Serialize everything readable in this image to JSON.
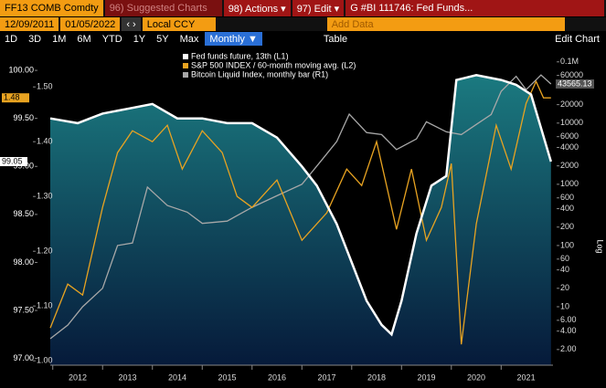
{
  "toolbar": {
    "ticker": "FF13 COMB Comdty",
    "suggested": "96) Suggested Charts",
    "actions": "98) Actions ▾",
    "edit": "97) Edit ▾",
    "chart_name": "G #BI 111746: Fed Funds...",
    "start_date": "12/09/2011",
    "end_date": "01/05/2022",
    "currency": "Local CCY",
    "add_data": "Add Data",
    "periods": [
      "1D",
      "3D",
      "1M",
      "6M",
      "YTD",
      "1Y",
      "5Y",
      "Max"
    ],
    "frequency": "Monthly ▼",
    "table": "Table",
    "edit_chart": "Edit Chart"
  },
  "chart_data": {
    "type": "line",
    "y3label": "Log",
    "y3log": true,
    "xlim": [
      2011.95,
      2022.04
    ],
    "xticks": [
      2012,
      2013,
      2014,
      2015,
      2016,
      2017,
      2018,
      2019,
      2020,
      2021
    ],
    "ylim": [
      96.93,
      100.21
    ],
    "yticks": [
      {
        "value": 97,
        "label": "97.00"
      },
      {
        "value": 97.5,
        "label": "97.50"
      },
      {
        "value": 98,
        "label": "98.00"
      },
      {
        "value": 98.5,
        "label": "98.50"
      },
      {
        "value": 99,
        "label": "99.00"
      },
      {
        "value": 99.5,
        "label": "99.50"
      },
      {
        "value": 100,
        "label": "100.00"
      }
    ],
    "y2lim": [
      0.992,
      1.567
    ],
    "y2ticks": [
      {
        "value": 1.0,
        "label": "1.00"
      },
      {
        "value": 1.1,
        "label": "1.10"
      },
      {
        "value": 1.2,
        "label": "1.20"
      },
      {
        "value": 1.3,
        "label": "1.30"
      },
      {
        "value": 1.4,
        "label": "1.40"
      },
      {
        "value": 1.5,
        "label": "1.50"
      }
    ],
    "y3lim": [
      1.11,
      155000
    ],
    "y3ticks": [
      {
        "value": 100000,
        "label": "0.1M"
      },
      60000,
      40000,
      20000,
      10000,
      6000,
      4000,
      2000,
      1000,
      600,
      400,
      200,
      100,
      60,
      40,
      20,
      10,
      {
        "value": 6,
        "label": "6.00"
      },
      {
        "value": 4,
        "label": "4.00"
      },
      {
        "value": 2,
        "label": "2.00"
      }
    ],
    "series": [
      {
        "name": "Fed funds future, 13th (L1)",
        "color": "#ffffff",
        "axis": "y",
        "last_label": "99.05",
        "x": [
          2011.95,
          2012.5,
          2013.0,
          2013.5,
          2014.0,
          2014.5,
          2015.0,
          2015.5,
          2016.0,
          2016.5,
          2017.0,
          2017.3,
          2017.7,
          2018.0,
          2018.3,
          2018.6,
          2018.8,
          2019.0,
          2019.3,
          2019.6,
          2019.9,
          2020.1,
          2020.5,
          2021.0,
          2021.3,
          2021.6,
          2021.8,
          2022.0
        ],
        "values": [
          99.5,
          99.45,
          99.55,
          99.6,
          99.65,
          99.5,
          99.5,
          99.45,
          99.45,
          99.3,
          99.0,
          98.8,
          98.4,
          98.0,
          97.6,
          97.35,
          97.25,
          97.6,
          98.3,
          98.8,
          98.9,
          99.9,
          99.95,
          99.9,
          99.85,
          99.75,
          99.4,
          99.05
        ]
      },
      {
        "name": "S&P 500 INDEX / 60-month moving avg. (L2)",
        "color": "#e8a321",
        "axis": "y2",
        "last_label": "1.48",
        "x": [
          2011.95,
          2012.3,
          2012.6,
          2013.0,
          2013.3,
          2013.6,
          2014.0,
          2014.3,
          2014.6,
          2015.0,
          2015.4,
          2015.7,
          2016.0,
          2016.5,
          2017.0,
          2017.5,
          2017.9,
          2018.2,
          2018.5,
          2018.9,
          2019.2,
          2019.5,
          2019.8,
          2020.0,
          2020.2,
          2020.5,
          2020.9,
          2021.2,
          2021.5,
          2021.7,
          2021.85,
          2022.0
        ],
        "values": [
          1.06,
          1.14,
          1.12,
          1.28,
          1.38,
          1.42,
          1.4,
          1.43,
          1.35,
          1.42,
          1.38,
          1.3,
          1.28,
          1.33,
          1.22,
          1.27,
          1.35,
          1.32,
          1.4,
          1.24,
          1.35,
          1.22,
          1.28,
          1.36,
          1.03,
          1.25,
          1.43,
          1.35,
          1.47,
          1.51,
          1.48,
          1.48
        ]
      },
      {
        "name": "Bitcoin Liquid Index, monthly bar (R1)",
        "color": "#a8a8a8",
        "axis": "y3",
        "last_label": "43565.13",
        "x": [
          2011.95,
          2012.3,
          2012.6,
          2013.0,
          2013.3,
          2013.6,
          2013.9,
          2014.3,
          2014.7,
          2015.0,
          2015.5,
          2016.0,
          2016.5,
          2017.0,
          2017.4,
          2017.7,
          2017.95,
          2018.3,
          2018.6,
          2018.9,
          2019.3,
          2019.5,
          2019.9,
          2020.2,
          2020.5,
          2020.8,
          2021.0,
          2021.3,
          2021.5,
          2021.8,
          2022.0
        ],
        "values": [
          3,
          5,
          10,
          20,
          100,
          110,
          900,
          450,
          350,
          230,
          250,
          420,
          650,
          1000,
          2500,
          5000,
          14000,
          7000,
          6500,
          3700,
          5500,
          10500,
          7200,
          6500,
          9500,
          13800,
          33000,
          58000,
          35000,
          61000,
          43565.13
        ]
      }
    ]
  }
}
